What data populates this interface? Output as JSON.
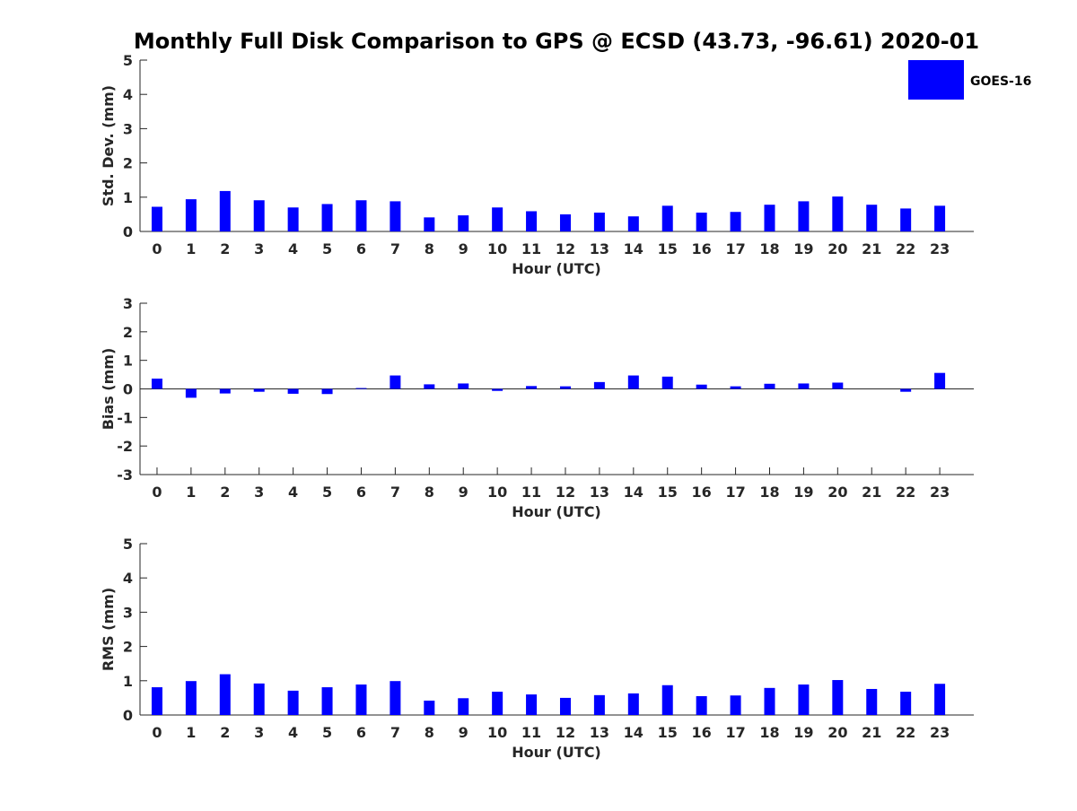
{
  "title": "Monthly Full Disk Comparison to GPS @ ECSD (43.73, -96.61) 2020-01",
  "legend": {
    "label": "GOES-16",
    "color": "#0000ff",
    "placement": "top-right"
  },
  "chart_data": [
    {
      "type": "bar",
      "xlabel": "Hour (UTC)",
      "ylabel": "Std. Dev. (mm)",
      "ylim": [
        0,
        5
      ],
      "yticks": [
        "0",
        "1",
        "2",
        "3",
        "4",
        "5"
      ],
      "categories": [
        "0",
        "1",
        "2",
        "3",
        "4",
        "5",
        "6",
        "7",
        "8",
        "9",
        "10",
        "11",
        "12",
        "13",
        "14",
        "15",
        "16",
        "17",
        "18",
        "19",
        "20",
        "21",
        "22",
        "23"
      ],
      "series": [
        {
          "name": "GOES-16",
          "color": "#0000ff",
          "values": [
            0.72,
            0.94,
            1.18,
            0.91,
            0.7,
            0.8,
            0.91,
            0.88,
            0.41,
            0.47,
            0.7,
            0.59,
            0.5,
            0.55,
            0.44,
            0.75,
            0.55,
            0.57,
            0.78,
            0.88,
            1.02,
            0.78,
            0.67,
            0.75
          ]
        }
      ]
    },
    {
      "type": "bar",
      "xlabel": "Hour (UTC)",
      "ylabel": "Bias (mm)",
      "ylim": [
        -3,
        3
      ],
      "yticks": [
        "-3",
        "-2",
        "-1",
        "0",
        "1",
        "2",
        "3"
      ],
      "categories": [
        "0",
        "1",
        "2",
        "3",
        "4",
        "5",
        "6",
        "7",
        "8",
        "9",
        "10",
        "11",
        "12",
        "13",
        "14",
        "15",
        "16",
        "17",
        "18",
        "19",
        "20",
        "21",
        "22",
        "23"
      ],
      "series": [
        {
          "name": "GOES-16",
          "color": "#0000ff",
          "values": [
            0.36,
            -0.31,
            -0.16,
            -0.1,
            -0.17,
            -0.18,
            0.03,
            0.47,
            0.16,
            0.19,
            -0.07,
            0.1,
            0.09,
            0.24,
            0.47,
            0.43,
            0.15,
            0.09,
            0.18,
            0.19,
            0.22,
            0.0,
            -0.1,
            0.56
          ]
        }
      ]
    },
    {
      "type": "bar",
      "xlabel": "Hour (UTC)",
      "ylabel": "RMS (mm)",
      "ylim": [
        0,
        5
      ],
      "yticks": [
        "0",
        "1",
        "2",
        "3",
        "4",
        "5"
      ],
      "categories": [
        "0",
        "1",
        "2",
        "3",
        "4",
        "5",
        "6",
        "7",
        "8",
        "9",
        "10",
        "11",
        "12",
        "13",
        "14",
        "15",
        "16",
        "17",
        "18",
        "19",
        "20",
        "21",
        "22",
        "23"
      ],
      "series": [
        {
          "name": "GOES-16",
          "color": "#0000ff",
          "values": [
            0.81,
            0.99,
            1.19,
            0.92,
            0.71,
            0.81,
            0.89,
            0.99,
            0.42,
            0.49,
            0.68,
            0.6,
            0.5,
            0.58,
            0.63,
            0.87,
            0.55,
            0.57,
            0.79,
            0.89,
            1.02,
            0.76,
            0.68,
            0.91
          ]
        }
      ]
    }
  ]
}
